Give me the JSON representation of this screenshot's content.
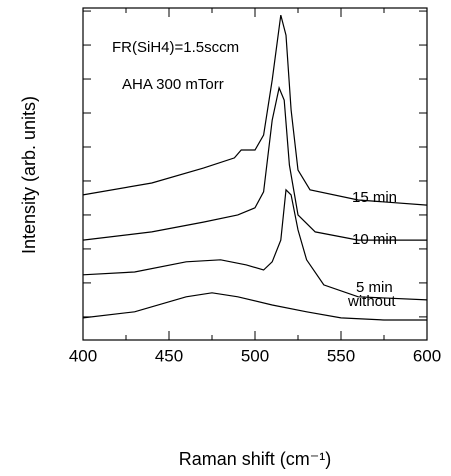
{
  "chart_data": {
    "type": "line",
    "annotations": [
      "FR(SiH4)=1.5sccm",
      "AHA 300 mTorr"
    ],
    "x_label": "Raman shift (cm⁻¹)",
    "y_label": "Intensity (arb. units)",
    "xlim": [
      400,
      600
    ],
    "xticks": [
      400,
      450,
      500,
      550,
      600
    ],
    "xminorticks": [
      425,
      475,
      525,
      575
    ],
    "ylim": [
      -0.68,
      9.09
    ],
    "yticks": [
      0,
      1,
      2,
      3,
      4,
      5,
      6,
      7,
      8,
      9
    ],
    "ytick_labels": false,
    "series": [
      {
        "name": "15 min",
        "color": "#000000",
        "x": [
          400,
          440,
          470,
          488,
          492,
          500,
          505,
          510,
          515,
          518,
          521,
          525,
          532,
          560,
          600
        ],
        "values": [
          3.59,
          3.94,
          4.38,
          4.68,
          4.91,
          4.91,
          5.35,
          6.97,
          8.88,
          8.29,
          6.09,
          4.32,
          3.74,
          3.44,
          3.29
        ]
      },
      {
        "name": "10 min",
        "color": "#000000",
        "x": [
          400,
          440,
          470,
          490,
          500,
          505,
          510,
          514,
          517,
          520,
          525,
          535,
          560,
          600
        ],
        "values": [
          2.26,
          2.5,
          2.79,
          3.0,
          3.21,
          3.68,
          5.79,
          6.74,
          6.38,
          4.47,
          3.0,
          2.5,
          2.26,
          2.26
        ]
      },
      {
        "name": "5 min",
        "color": "#000000",
        "x": [
          400,
          430,
          460,
          480,
          495,
          505,
          510,
          515,
          518,
          521,
          525,
          530,
          540,
          560,
          600
        ],
        "values": [
          1.24,
          1.32,
          1.62,
          1.68,
          1.53,
          1.38,
          1.62,
          2.26,
          3.74,
          3.59,
          2.56,
          1.68,
          0.94,
          0.59,
          0.5
        ]
      },
      {
        "name": "without",
        "color": "#000000",
        "x": [
          400,
          430,
          460,
          475,
          490,
          510,
          530,
          550,
          575,
          600
        ],
        "values": [
          -0.03,
          0.15,
          0.59,
          0.71,
          0.59,
          0.35,
          0.15,
          -0.03,
          -0.09,
          -0.09
        ]
      }
    ]
  }
}
